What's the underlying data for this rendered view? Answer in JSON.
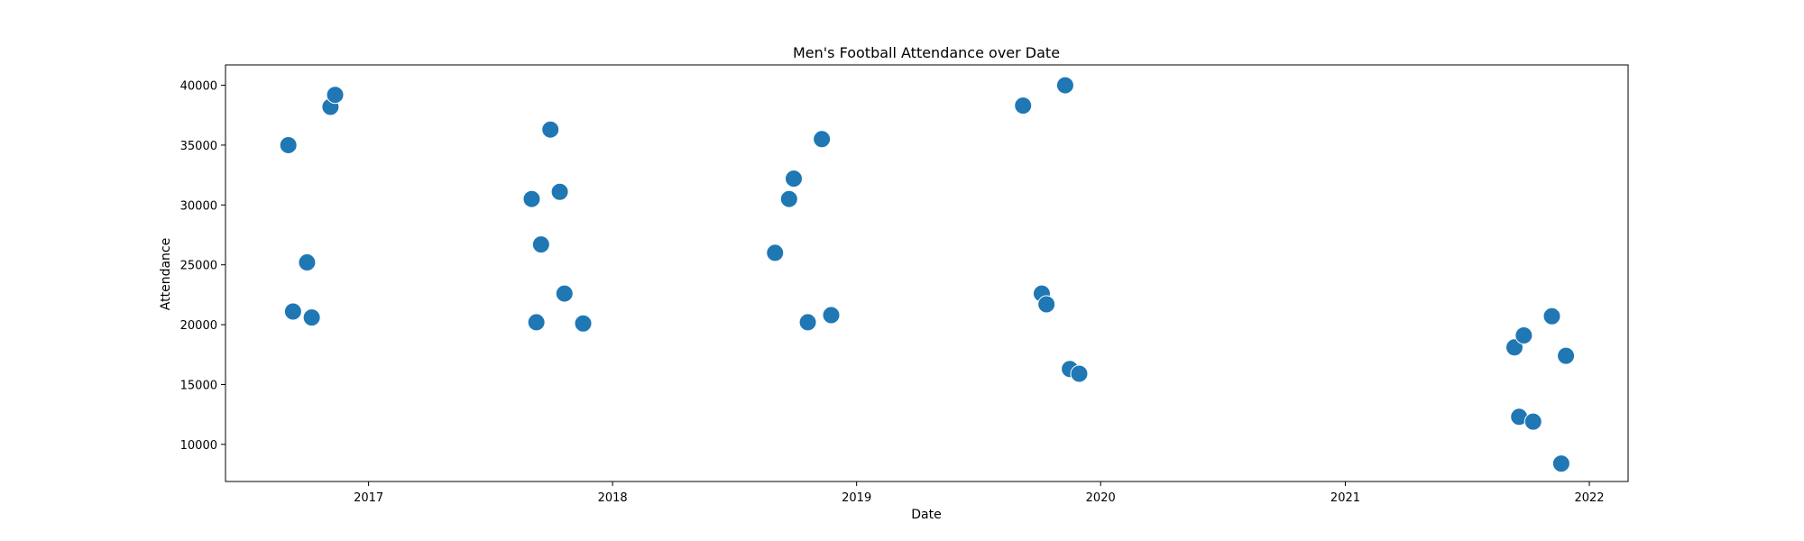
{
  "chart_data": {
    "type": "scatter",
    "title": "Men's Football Attendance over Date",
    "xlabel": "Date",
    "ylabel": "Attendance",
    "xlim": [
      "2016-06-01",
      "2022-02-28"
    ],
    "ylim": [
      6900,
      41700
    ],
    "x_ticks": [
      "2017-01-01",
      "2018-01-01",
      "2019-01-01",
      "2020-01-01",
      "2021-01-01",
      "2022-01-01"
    ],
    "x_tick_labels": [
      "2017",
      "2018",
      "2019",
      "2020",
      "2021",
      "2022"
    ],
    "y_ticks": [
      10000,
      15000,
      20000,
      25000,
      30000,
      35000,
      40000
    ],
    "y_tick_labels": [
      "10000",
      "15000",
      "20000",
      "25000",
      "30000",
      "35000",
      "40000"
    ],
    "grid": false,
    "legend": "none",
    "marker_color": "#1f77b4",
    "marker_edge_color": "#ffffff",
    "points": [
      {
        "x": "2016-09-03",
        "y": 35000
      },
      {
        "x": "2016-09-10",
        "y": 21100
      },
      {
        "x": "2016-10-01",
        "y": 25200
      },
      {
        "x": "2016-10-08",
        "y": 20600
      },
      {
        "x": "2016-11-05",
        "y": 38200
      },
      {
        "x": "2016-11-12",
        "y": 39200
      },
      {
        "x": "2017-09-02",
        "y": 30500
      },
      {
        "x": "2017-09-09",
        "y": 20200
      },
      {
        "x": "2017-09-16",
        "y": 26700
      },
      {
        "x": "2017-09-30",
        "y": 36300
      },
      {
        "x": "2017-10-14",
        "y": 31100
      },
      {
        "x": "2017-10-21",
        "y": 22600
      },
      {
        "x": "2017-11-18",
        "y": 20100
      },
      {
        "x": "2018-09-01",
        "y": 26000
      },
      {
        "x": "2018-09-22",
        "y": 30500
      },
      {
        "x": "2018-09-29",
        "y": 32200
      },
      {
        "x": "2018-10-20",
        "y": 20200
      },
      {
        "x": "2018-11-10",
        "y": 35500
      },
      {
        "x": "2018-11-24",
        "y": 20800
      },
      {
        "x": "2019-09-07",
        "y": 38300
      },
      {
        "x": "2019-10-05",
        "y": 22600
      },
      {
        "x": "2019-10-12",
        "y": 21700
      },
      {
        "x": "2019-11-09",
        "y": 40000
      },
      {
        "x": "2019-11-16",
        "y": 16300
      },
      {
        "x": "2019-11-30",
        "y": 15900
      },
      {
        "x": "2021-09-11",
        "y": 18100
      },
      {
        "x": "2021-09-18",
        "y": 12300
      },
      {
        "x": "2021-09-25",
        "y": 19100
      },
      {
        "x": "2021-10-09",
        "y": 11900
      },
      {
        "x": "2021-11-06",
        "y": 20700
      },
      {
        "x": "2021-11-20",
        "y": 8400
      },
      {
        "x": "2021-11-27",
        "y": 17400
      }
    ]
  }
}
